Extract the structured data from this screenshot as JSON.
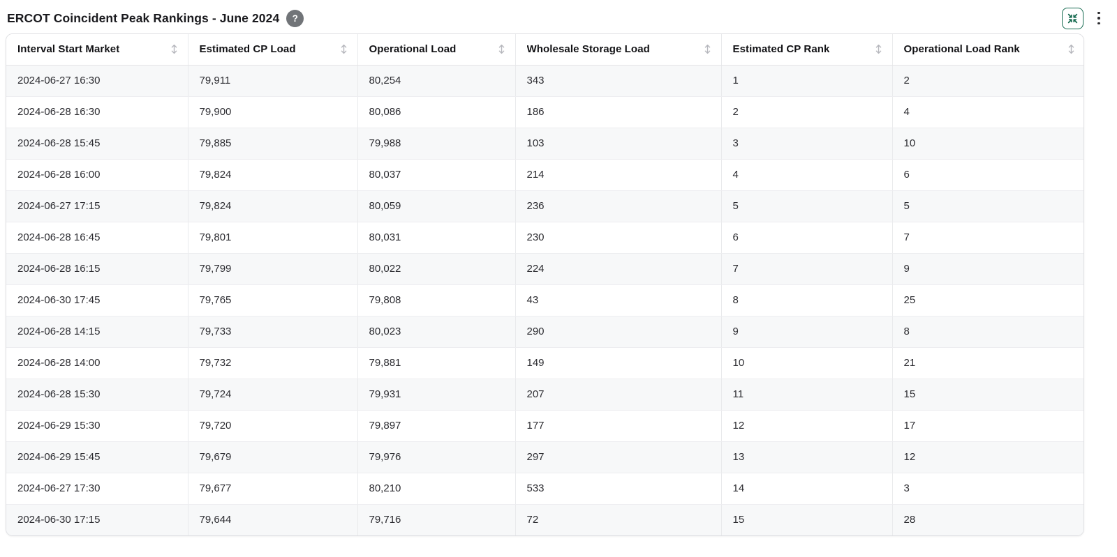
{
  "header": {
    "title": "ERCOT Coincident Peak Rankings - June 2024",
    "help_glyph": "?",
    "accent_green": "#166a50"
  },
  "icons": {
    "help": "question-mark-circle",
    "collapse": "arrows-pointing-in",
    "menu": "kebab-vertical-dots",
    "sort": "vertical-double-arrow"
  },
  "table": {
    "columns": [
      {
        "label": "Interval Start Market"
      },
      {
        "label": "Estimated CP Load"
      },
      {
        "label": "Operational Load"
      },
      {
        "label": "Wholesale Storage Load"
      },
      {
        "label": "Estimated CP Rank"
      },
      {
        "label": "Operational Load Rank"
      }
    ],
    "rows": [
      [
        "2024-06-27 16:30",
        "79,911",
        "80,254",
        "343",
        "1",
        "2"
      ],
      [
        "2024-06-28 16:30",
        "79,900",
        "80,086",
        "186",
        "2",
        "4"
      ],
      [
        "2024-06-28 15:45",
        "79,885",
        "79,988",
        "103",
        "3",
        "10"
      ],
      [
        "2024-06-28 16:00",
        "79,824",
        "80,037",
        "214",
        "4",
        "6"
      ],
      [
        "2024-06-27 17:15",
        "79,824",
        "80,059",
        "236",
        "5",
        "5"
      ],
      [
        "2024-06-28 16:45",
        "79,801",
        "80,031",
        "230",
        "6",
        "7"
      ],
      [
        "2024-06-28 16:15",
        "79,799",
        "80,022",
        "224",
        "7",
        "9"
      ],
      [
        "2024-06-30 17:45",
        "79,765",
        "79,808",
        "43",
        "8",
        "25"
      ],
      [
        "2024-06-28 14:15",
        "79,733",
        "80,023",
        "290",
        "9",
        "8"
      ],
      [
        "2024-06-28 14:00",
        "79,732",
        "79,881",
        "149",
        "10",
        "21"
      ],
      [
        "2024-06-28 15:30",
        "79,724",
        "79,931",
        "207",
        "11",
        "15"
      ],
      [
        "2024-06-29 15:30",
        "79,720",
        "79,897",
        "177",
        "12",
        "17"
      ],
      [
        "2024-06-29 15:45",
        "79,679",
        "79,976",
        "297",
        "13",
        "12"
      ],
      [
        "2024-06-27 17:30",
        "79,677",
        "80,210",
        "533",
        "14",
        "3"
      ],
      [
        "2024-06-30 17:15",
        "79,644",
        "79,716",
        "72",
        "15",
        "28"
      ]
    ]
  },
  "chart_data": {
    "type": "table",
    "title": "ERCOT Coincident Peak Rankings - June 2024",
    "columns": [
      "Interval Start Market",
      "Estimated CP Load",
      "Operational Load",
      "Wholesale Storage Load",
      "Estimated CP Rank",
      "Operational Load Rank"
    ],
    "rows": [
      [
        "2024-06-27 16:30",
        79911,
        80254,
        343,
        1,
        2
      ],
      [
        "2024-06-28 16:30",
        79900,
        80086,
        186,
        2,
        4
      ],
      [
        "2024-06-28 15:45",
        79885,
        79988,
        103,
        3,
        10
      ],
      [
        "2024-06-28 16:00",
        79824,
        80037,
        214,
        4,
        6
      ],
      [
        "2024-06-27 17:15",
        79824,
        80059,
        236,
        5,
        5
      ],
      [
        "2024-06-28 16:45",
        79801,
        80031,
        230,
        6,
        7
      ],
      [
        "2024-06-28 16:15",
        79799,
        80022,
        224,
        7,
        9
      ],
      [
        "2024-06-30 17:45",
        79765,
        79808,
        43,
        8,
        25
      ],
      [
        "2024-06-28 14:15",
        79733,
        80023,
        290,
        9,
        8
      ],
      [
        "2024-06-28 14:00",
        79732,
        79881,
        149,
        10,
        21
      ],
      [
        "2024-06-28 15:30",
        79724,
        79931,
        207,
        11,
        15
      ],
      [
        "2024-06-29 15:30",
        79720,
        79897,
        177,
        12,
        17
      ],
      [
        "2024-06-29 15:45",
        79679,
        79976,
        297,
        13,
        12
      ],
      [
        "2024-06-27 17:30",
        79677,
        80210,
        533,
        14,
        3
      ],
      [
        "2024-06-30 17:15",
        79644,
        79716,
        72,
        15,
        28
      ]
    ]
  }
}
